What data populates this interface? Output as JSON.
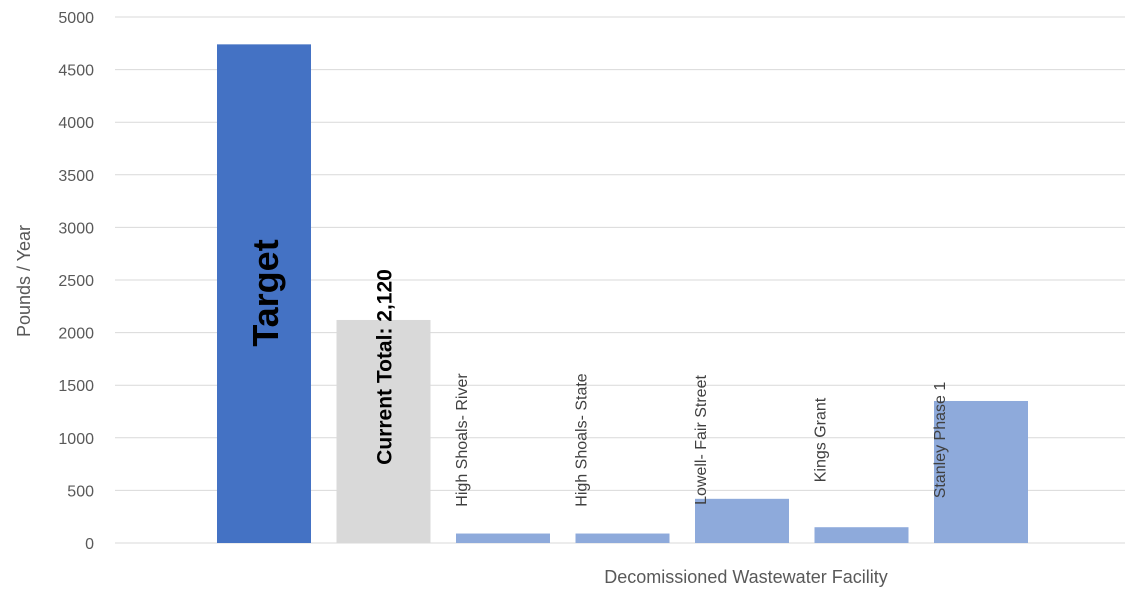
{
  "chart_data": {
    "type": "bar",
    "xlabel": "Decomissioned Wastewater Facility",
    "ylabel": "Pounds / Year",
    "ylim": [
      0,
      5000
    ],
    "yticks": [
      0,
      500,
      1000,
      1500,
      2000,
      2500,
      3000,
      3500,
      4000,
      4500,
      5000
    ],
    "grid": true,
    "bars": [
      {
        "label": "Target",
        "value": 4740,
        "color": "#4472c4",
        "label_style": "target"
      },
      {
        "label": "Current Total:   2,120",
        "value": 2120,
        "color": "#d9d9d9",
        "label_style": "total"
      },
      {
        "label": "High Shoals- River",
        "value": 90,
        "color": "#8eaadb",
        "label_style": "normal"
      },
      {
        "label": "High Shoals- State",
        "value": 90,
        "color": "#8eaadb",
        "label_style": "normal"
      },
      {
        "label": "Lowell- Fair Street",
        "value": 420,
        "color": "#8eaadb",
        "label_style": "normal"
      },
      {
        "label": "Kings Grant",
        "value": 150,
        "color": "#8eaadb",
        "label_style": "normal"
      },
      {
        "label": "Stanley Phase 1",
        "value": 1350,
        "color": "#8eaadb",
        "label_style": "normal"
      }
    ]
  }
}
